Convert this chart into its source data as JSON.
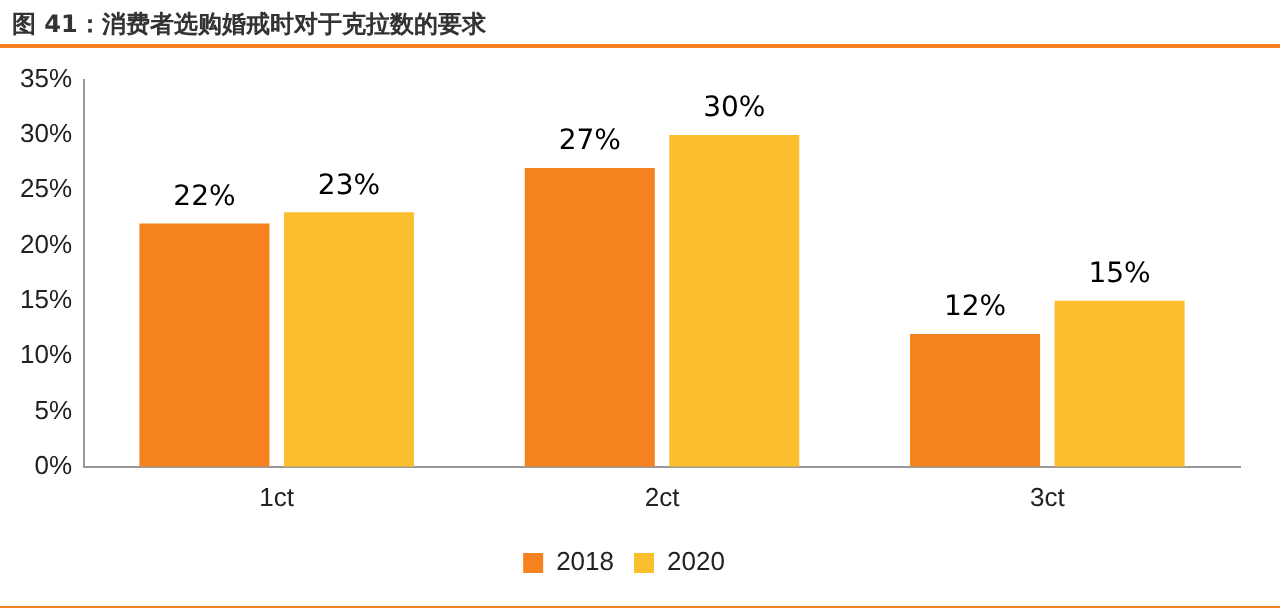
{
  "chart_data": {
    "type": "bar",
    "title": "图 41：消费者选购婚戒时对于克拉数的要求",
    "categories": [
      "1ct",
      "2ct",
      "3ct"
    ],
    "series": [
      {
        "name": "2018",
        "color": "#f5821f",
        "values": [
          22,
          27,
          12
        ],
        "value_labels": [
          "22%",
          "27%",
          "12%"
        ]
      },
      {
        "name": "2020",
        "color": "#fbbf2d",
        "values": [
          23,
          30,
          15
        ],
        "value_labels": [
          "23%",
          "30%",
          "15%"
        ]
      }
    ],
    "ylim": [
      0,
      35
    ],
    "yticks": [
      {
        "value": 0,
        "label": "0%"
      },
      {
        "value": 5,
        "label": "5%"
      },
      {
        "value": 10,
        "label": "10%"
      },
      {
        "value": 15,
        "label": "15%"
      },
      {
        "value": 20,
        "label": "20%"
      },
      {
        "value": 25,
        "label": "25%"
      },
      {
        "value": 30,
        "label": "30%"
      },
      {
        "value": 35,
        "label": "35%"
      }
    ],
    "grid": false,
    "legend": "bottom"
  }
}
